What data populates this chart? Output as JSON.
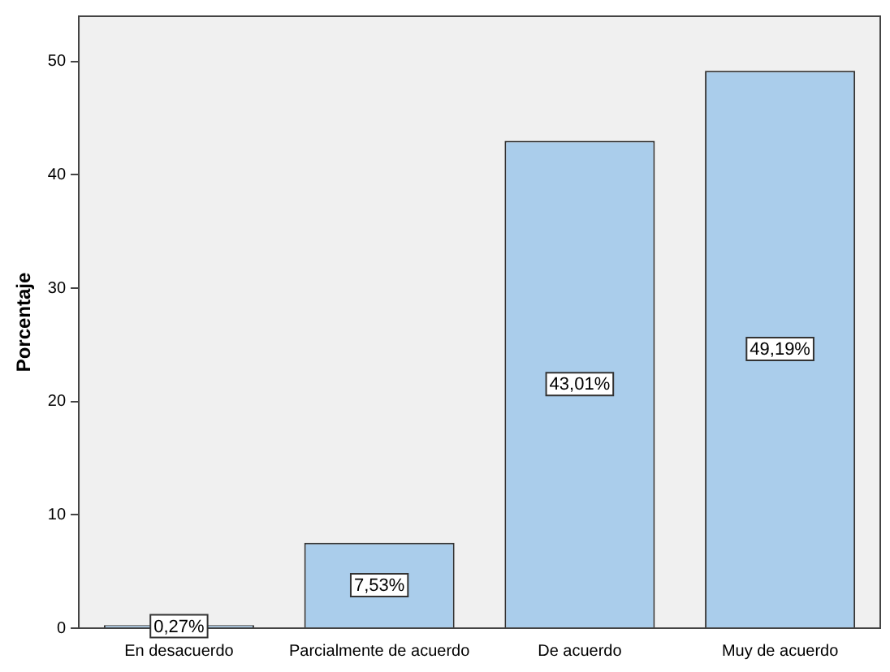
{
  "chart_data": {
    "type": "bar",
    "ylabel": "Porcentaje",
    "categories": [
      "En desacuerdo",
      "Parcialmente de acuerdo",
      "De acuerdo",
      "Muy de acuerdo"
    ],
    "values": [
      0.27,
      7.53,
      43.01,
      49.19
    ],
    "value_labels": [
      "0,27%",
      "7,53%",
      "43,01%",
      "49,19%"
    ],
    "color": "#aacdeb",
    "ylim": [
      0,
      54
    ],
    "yticks": [
      0,
      10,
      20,
      30,
      40,
      50
    ],
    "grid": false,
    "legend": false
  }
}
